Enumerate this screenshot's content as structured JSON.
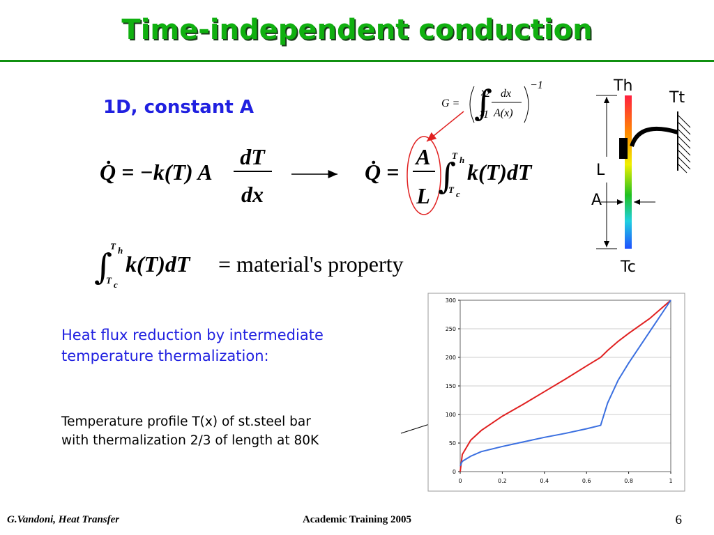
{
  "header": {
    "title": "Time-independent conduction"
  },
  "subtitle": "1D, constant A",
  "conductance": {
    "lhs": "G =",
    "integral": "∫",
    "upper": "x",
    "upper_sub": "2",
    "lower": "x",
    "lower_sub": "1",
    "numerator": "dx",
    "denominator": "A(x)",
    "exponent": "−1"
  },
  "equations": [
    {
      "lhs": "Q̇ = −k(T) A",
      "numerator": "dT",
      "denominator": "dx"
    },
    {
      "lhs": "Q̇ =",
      "numerator": "A",
      "denominator": "L",
      "integral": "∫",
      "upper": "T",
      "upper_sub": "h",
      "lower": "T",
      "lower_sub": "c",
      "integrand": "k(T)dT"
    },
    {
      "integral": "∫",
      "upper": "T",
      "upper_sub": "h",
      "lower": "T",
      "lower_sub": "c",
      "integrand": "k(T)dT",
      "rhs": "= material's property"
    }
  ],
  "diagram": {
    "hot": "Th",
    "thermalization": "Tt",
    "length": "L",
    "area": "A",
    "cold": "Tc"
  },
  "notes": [
    "Heat flux reduction by intermediate",
    "temperature thermalization:"
  ],
  "caption": [
    "Temperature profile T(x) of st.steel bar",
    "with thermalization 2/3 of length at 80K"
  ],
  "chart_data": {
    "type": "line",
    "x": [
      0,
      0.01,
      0.05,
      0.1,
      0.2,
      0.3,
      0.4,
      0.5,
      0.6,
      0.667,
      0.7,
      0.75,
      0.8,
      0.9,
      1
    ],
    "series": [
      {
        "color": "#e02020",
        "values": [
          0,
          30,
          55,
          72,
          97,
          118,
          140,
          162,
          185,
          200,
          212,
          228,
          242,
          268,
          300
        ]
      },
      {
        "color": "#3a6fe0",
        "values": [
          10,
          18,
          27,
          35,
          44,
          52,
          60,
          67,
          75,
          81,
          120,
          160,
          190,
          245,
          300
        ]
      }
    ],
    "xlim": [
      0,
      1
    ],
    "xticks": [
      0,
      0.2,
      0.4,
      0.6,
      0.8,
      1
    ],
    "ylim": [
      0,
      300
    ],
    "yticks": [
      0,
      50,
      100,
      150,
      200,
      250,
      300
    ],
    "grid": true
  },
  "footer": {
    "author": "G.Vandoni, Heat Transfer",
    "event": "Academic Training 2005",
    "page": "6"
  }
}
